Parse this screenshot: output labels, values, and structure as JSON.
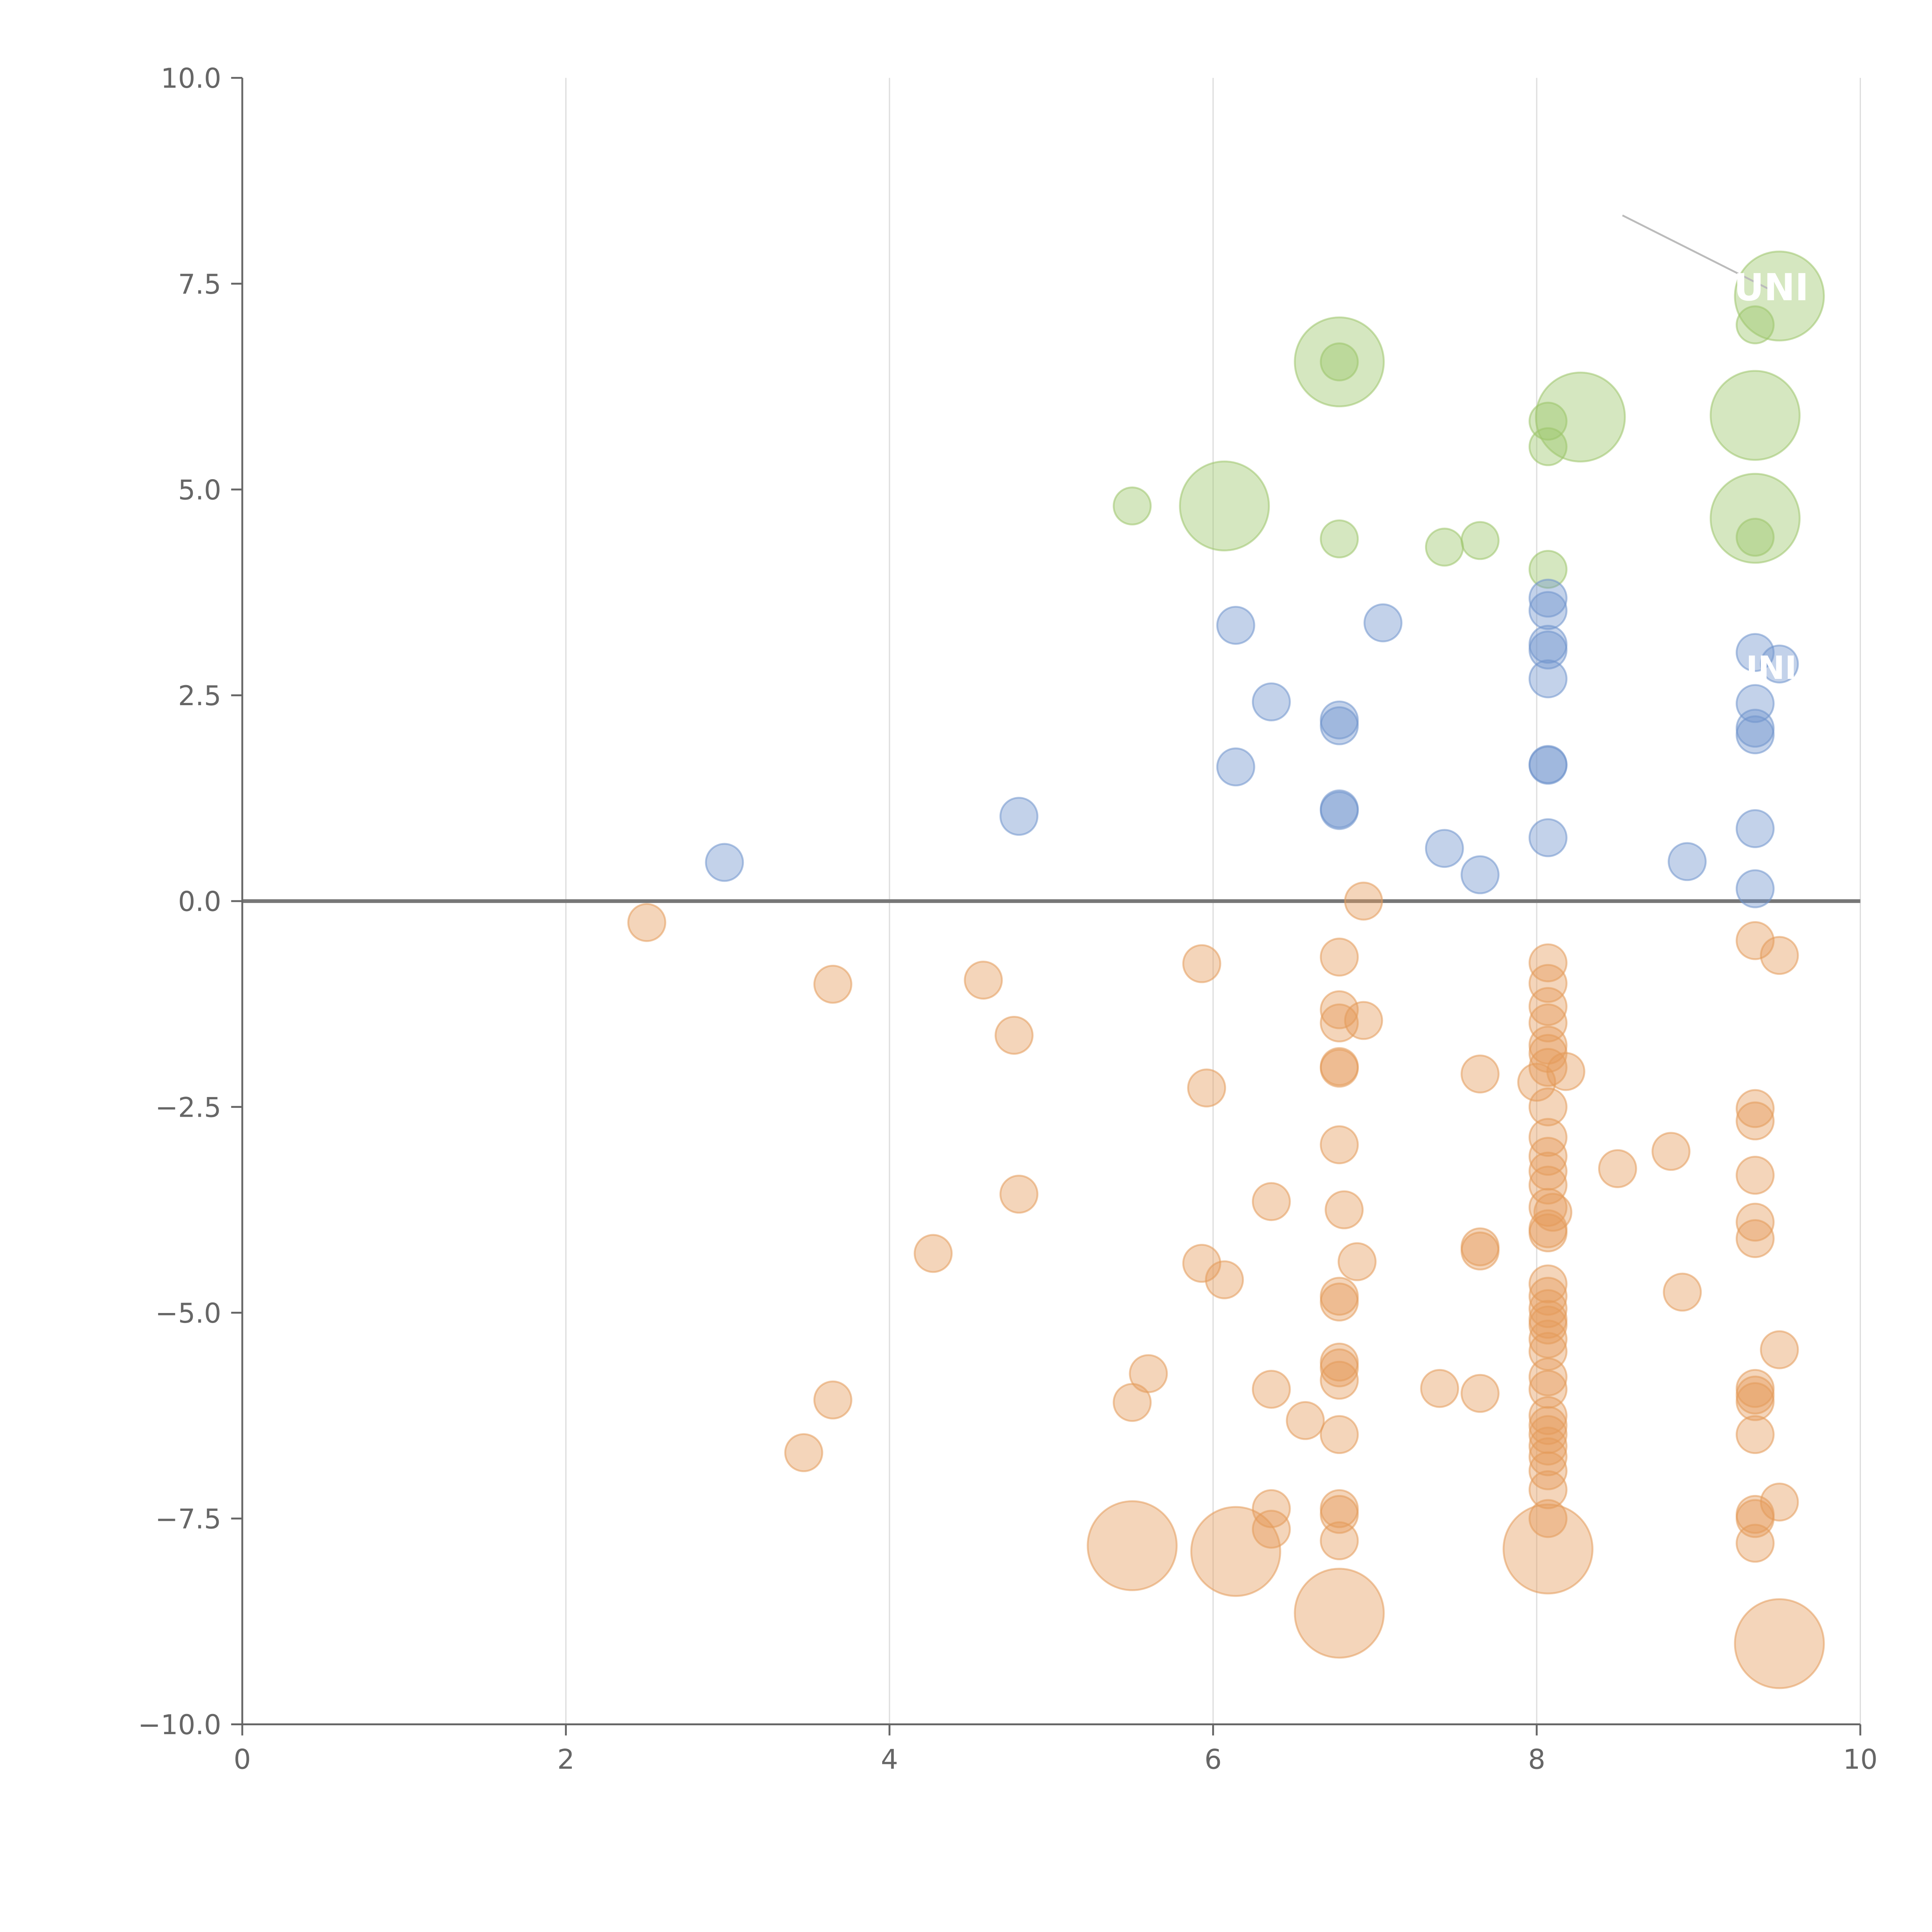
{
  "chart_data": {
    "type": "scatter",
    "title": "",
    "xlabel": "",
    "ylabel": "",
    "xlim": [
      0,
      10
    ],
    "ylim": [
      -10,
      10
    ],
    "x_ticks": [
      0,
      2,
      4,
      6,
      8,
      10
    ],
    "y_ticks": [
      10,
      7.5,
      5,
      2.5,
      0,
      -2.5,
      -5,
      -7.5,
      -10
    ],
    "x_tick_labels": [
      "0",
      "2",
      "4",
      "6",
      "8",
      "10"
    ],
    "y_tick_labels": [
      "10.0",
      "7.5",
      "5.0",
      "2.5",
      "0.0",
      "−2.5",
      "−5.0",
      "−7.5",
      "−10.0"
    ],
    "grid": "vertical",
    "zero_line": true,
    "colors": {
      "green": "#9cc56a",
      "blue": "#6f93cc",
      "orange": "#e49a5a"
    },
    "annotation_lines": [
      {
        "x1": 8.53,
        "y1": 8.33,
        "x2": 9.45,
        "y2": 7.42
      }
    ],
    "labels": [
      {
        "text": "UNI",
        "x": 9.45,
        "y": 7.42,
        "size": "large"
      },
      {
        "text": "INI",
        "x": 9.45,
        "y": 2.82,
        "size": "medium"
      }
    ],
    "series": [
      {
        "name": "green",
        "color": "#9cc56a",
        "points": [
          [
            6.78,
            6.55,
            1
          ],
          [
            6.78,
            6.55,
            2.4
          ],
          [
            5.5,
            4.8,
            1
          ],
          [
            6.07,
            4.8,
            2.4
          ],
          [
            6.78,
            4.4,
            1
          ],
          [
            7.43,
            4.3,
            1
          ],
          [
            7.65,
            4.38,
            1
          ],
          [
            8.07,
            5.83,
            1
          ],
          [
            8.07,
            5.52,
            1
          ],
          [
            8.27,
            5.88,
            2.4
          ],
          [
            8.07,
            4.03,
            1
          ],
          [
            9.35,
            7.0,
            1
          ],
          [
            9.5,
            7.35,
            2.4
          ],
          [
            9.35,
            5.9,
            2.4
          ],
          [
            9.35,
            4.65,
            2.4
          ],
          [
            9.35,
            4.42,
            1
          ]
        ]
      },
      {
        "name": "blue",
        "color": "#6f93cc",
        "points": [
          [
            2.98,
            0.47,
            1
          ],
          [
            4.8,
            1.03,
            1
          ],
          [
            6.14,
            3.35,
            1
          ],
          [
            6.36,
            2.42,
            1
          ],
          [
            6.14,
            1.63,
            1
          ],
          [
            6.78,
            2.2,
            1
          ],
          [
            6.78,
            2.13,
            1
          ],
          [
            6.78,
            1.12,
            1
          ],
          [
            6.78,
            1.1,
            1
          ],
          [
            7.05,
            3.38,
            1
          ],
          [
            7.43,
            0.64,
            1
          ],
          [
            7.65,
            0.32,
            1
          ],
          [
            8.07,
            3.68,
            1
          ],
          [
            8.07,
            3.53,
            1
          ],
          [
            8.07,
            3.12,
            1
          ],
          [
            8.07,
            3.05,
            1
          ],
          [
            8.07,
            2.7,
            1
          ],
          [
            8.07,
            1.66,
            1
          ],
          [
            8.07,
            1.65,
            1
          ],
          [
            8.07,
            0.77,
            1
          ],
          [
            8.93,
            0.48,
            1
          ],
          [
            9.35,
            3.02,
            1
          ],
          [
            9.5,
            2.88,
            1
          ],
          [
            9.35,
            2.4,
            1
          ],
          [
            9.35,
            2.1,
            1
          ],
          [
            9.35,
            2.02,
            1
          ],
          [
            9.35,
            0.88,
            1
          ],
          [
            9.35,
            0.15,
            1
          ]
        ]
      },
      {
        "name": "orange",
        "color": "#e49a5a",
        "points": [
          [
            2.5,
            -0.26,
            1
          ],
          [
            3.65,
            -1.01,
            1
          ],
          [
            3.65,
            -6.06,
            1
          ],
          [
            3.47,
            -6.7,
            1
          ],
          [
            4.27,
            -4.28,
            1
          ],
          [
            4.58,
            -0.96,
            1
          ],
          [
            4.77,
            -1.63,
            1
          ],
          [
            4.8,
            -3.56,
            1
          ],
          [
            5.5,
            -6.09,
            1
          ],
          [
            5.6,
            -5.74,
            1
          ],
          [
            5.5,
            -7.83,
            2.4
          ],
          [
            5.93,
            -0.76,
            1
          ],
          [
            5.96,
            -2.27,
            1
          ],
          [
            5.93,
            -4.4,
            1
          ],
          [
            6.07,
            -4.6,
            1
          ],
          [
            6.14,
            -7.9,
            2.4
          ],
          [
            6.36,
            -3.65,
            1
          ],
          [
            6.36,
            -5.93,
            1
          ],
          [
            6.57,
            -6.31,
            1
          ],
          [
            6.36,
            -7.38,
            1
          ],
          [
            6.36,
            -7.63,
            1
          ],
          [
            6.78,
            -0.68,
            1
          ],
          [
            6.78,
            -1.32,
            1
          ],
          [
            6.78,
            -1.48,
            1
          ],
          [
            6.93,
            -1.45,
            1
          ],
          [
            6.78,
            -2.01,
            1
          ],
          [
            6.78,
            -2.03,
            1
          ],
          [
            6.78,
            -2.96,
            1
          ],
          [
            6.81,
            -3.75,
            1
          ],
          [
            6.89,
            -4.38,
            1
          ],
          [
            6.78,
            -4.8,
            1
          ],
          [
            6.78,
            -4.87,
            1
          ],
          [
            6.78,
            -5.6,
            1
          ],
          [
            6.78,
            -5.67,
            1
          ],
          [
            6.78,
            -5.82,
            1
          ],
          [
            6.78,
            -6.48,
            1
          ],
          [
            6.78,
            -7.38,
            1
          ],
          [
            6.78,
            -7.45,
            1
          ],
          [
            6.78,
            -7.77,
            1
          ],
          [
            6.78,
            -8.65,
            2.4
          ],
          [
            6.93,
            0.0,
            1
          ],
          [
            7.4,
            -5.92,
            1
          ],
          [
            7.65,
            -2.1,
            1
          ],
          [
            7.65,
            -4.2,
            1
          ],
          [
            7.65,
            -4.25,
            1
          ],
          [
            7.65,
            -5.98,
            1
          ],
          [
            8.07,
            -0.75,
            1
          ],
          [
            8.07,
            -1.0,
            1
          ],
          [
            8.07,
            -1.28,
            1
          ],
          [
            8.07,
            -1.48,
            1
          ],
          [
            8.07,
            -1.75,
            1
          ],
          [
            8.07,
            -1.85,
            1
          ],
          [
            8.07,
            -2.02,
            1
          ],
          [
            8.18,
            -2.07,
            1
          ],
          [
            8.0,
            -2.2,
            1
          ],
          [
            8.07,
            -2.5,
            1
          ],
          [
            8.07,
            -2.87,
            1
          ],
          [
            8.07,
            -3.1,
            1
          ],
          [
            8.07,
            -3.28,
            1
          ],
          [
            8.07,
            -3.45,
            1
          ],
          [
            8.07,
            -3.72,
            1
          ],
          [
            8.1,
            -3.78,
            1
          ],
          [
            8.07,
            -3.98,
            1
          ],
          [
            8.07,
            -4.03,
            1
          ],
          [
            8.07,
            -4.65,
            1
          ],
          [
            8.07,
            -4.8,
            1
          ],
          [
            8.07,
            -4.95,
            1
          ],
          [
            8.07,
            -5.08,
            1
          ],
          [
            8.07,
            -5.15,
            1
          ],
          [
            8.07,
            -5.32,
            1
          ],
          [
            8.07,
            -5.47,
            1
          ],
          [
            8.07,
            -5.78,
            1
          ],
          [
            8.07,
            -5.93,
            1
          ],
          [
            8.07,
            -6.25,
            1
          ],
          [
            8.07,
            -6.37,
            1
          ],
          [
            8.07,
            -6.48,
            1
          ],
          [
            8.07,
            -6.62,
            1
          ],
          [
            8.07,
            -6.75,
            1
          ],
          [
            8.07,
            -6.92,
            1
          ],
          [
            8.07,
            -7.15,
            1
          ],
          [
            8.07,
            -7.5,
            1
          ],
          [
            8.07,
            -7.87,
            2.4
          ],
          [
            8.5,
            -3.25,
            1
          ],
          [
            8.83,
            -3.04,
            1
          ],
          [
            8.9,
            -4.75,
            1
          ],
          [
            9.35,
            -0.48,
            1
          ],
          [
            9.5,
            -0.66,
            1
          ],
          [
            9.35,
            -2.52,
            1
          ],
          [
            9.35,
            -2.67,
            1
          ],
          [
            9.35,
            -3.33,
            1
          ],
          [
            9.35,
            -3.9,
            1
          ],
          [
            9.35,
            -4.1,
            1
          ],
          [
            9.5,
            -5.45,
            1
          ],
          [
            9.35,
            -5.92,
            1
          ],
          [
            9.35,
            -6.0,
            1
          ],
          [
            9.35,
            -6.08,
            1
          ],
          [
            9.35,
            -6.48,
            1
          ],
          [
            9.35,
            -7.45,
            1
          ],
          [
            9.35,
            -7.5,
            1
          ],
          [
            9.5,
            -7.3,
            1
          ],
          [
            9.35,
            -7.8,
            1
          ],
          [
            9.5,
            -9.02,
            2.4
          ]
        ]
      }
    ]
  }
}
